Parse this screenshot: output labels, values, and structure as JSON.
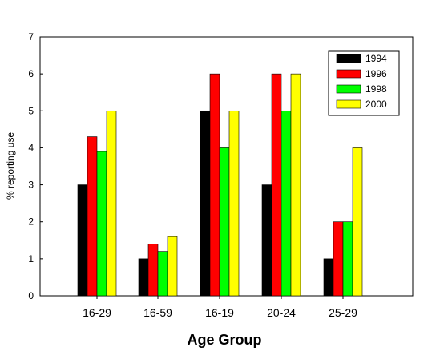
{
  "chart_data": {
    "type": "bar",
    "categories": [
      "16-29",
      "16-59",
      "16-19",
      "20-24",
      "25-29"
    ],
    "series": [
      {
        "name": "1994",
        "color": "#000000",
        "values": [
          3,
          1,
          5,
          3,
          1
        ]
      },
      {
        "name": "1996",
        "color": "#ff0000",
        "values": [
          4.3,
          1.4,
          6,
          6,
          2
        ]
      },
      {
        "name": "1998",
        "color": "#00ff00",
        "values": [
          3.9,
          1.2,
          4,
          5,
          2
        ]
      },
      {
        "name": "2000",
        "color": "#ffff00",
        "values": [
          5,
          1.6,
          5,
          6,
          4
        ]
      }
    ],
    "xlabel": "Age Group",
    "ylabel": "% reporting use",
    "ylim": [
      0,
      7
    ],
    "yticks": [
      0,
      1,
      2,
      3,
      4,
      5,
      6,
      7
    ],
    "grid": false,
    "legend_position": "top-right"
  }
}
